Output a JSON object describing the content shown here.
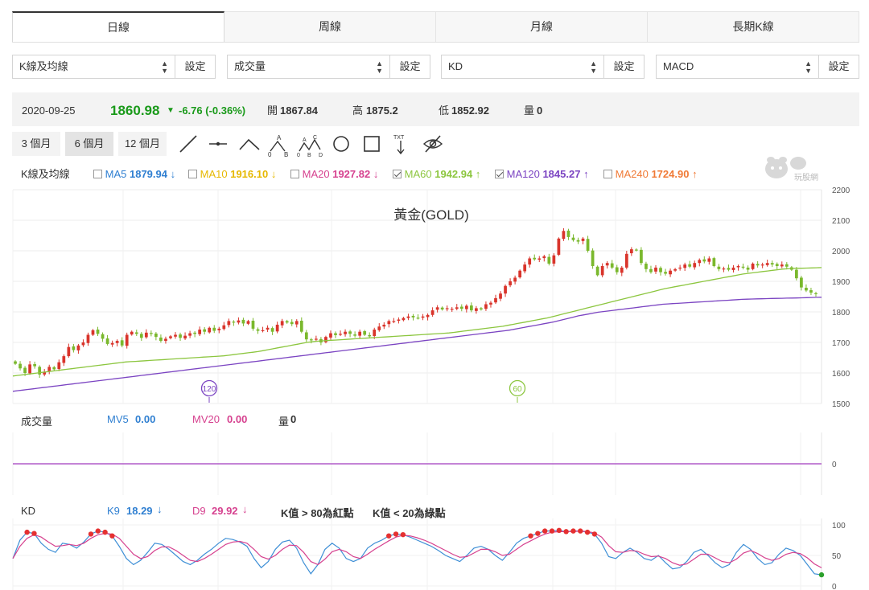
{
  "tabs": [
    "日線",
    "周線",
    "月線",
    "長期K線"
  ],
  "selectors": [
    {
      "value": "K線及均線",
      "button": "設定"
    },
    {
      "value": "成交量",
      "button": "設定"
    },
    {
      "value": "KD",
      "button": "設定"
    },
    {
      "value": "MACD",
      "button": "設定"
    }
  ],
  "quote": {
    "date": "2020-09-25",
    "price": "1860.98",
    "change": "-6.76 (-0.36%)",
    "open_label": "開",
    "open": "1867.84",
    "high_label": "高",
    "high": "1875.2",
    "low_label": "低",
    "low": "1852.92",
    "vol_label": "量",
    "vol": "0"
  },
  "periods": [
    "3 個月",
    "6 個月",
    "12 個月"
  ],
  "active_period": "6 個月",
  "tools": [
    "trend-line-icon",
    "horizontal-line-icon",
    "angle-line-icon",
    "abcd-pattern-icon",
    "abcd-wave-icon",
    "circle-icon",
    "rectangle-icon",
    "text-annotation-icon",
    "hide-eye-icon"
  ],
  "tool_text": {
    "pattern_a": "A",
    "pattern_b": "B",
    "pattern_c": "C",
    "pattern_d": "D",
    "pattern_0": "0",
    "txt": "TXT"
  },
  "logo": {
    "text": "玩股網"
  },
  "ma_legend": {
    "title": "K線及均線",
    "items": [
      {
        "name": "MA5",
        "value": "1879.94",
        "arrow": "↓",
        "color": "#2f7fd1",
        "checked": false
      },
      {
        "name": "MA10",
        "value": "1916.10",
        "arrow": "↓",
        "color": "#e6b800",
        "checked": false
      },
      {
        "name": "MA20",
        "value": "1927.82",
        "arrow": "↓",
        "color": "#d6418f",
        "checked": false
      },
      {
        "name": "MA60",
        "value": "1942.94",
        "arrow": "↑",
        "color": "#8cc63f",
        "checked": true
      },
      {
        "name": "MA120",
        "value": "1845.27",
        "arrow": "↑",
        "color": "#7b44c2",
        "checked": true
      },
      {
        "name": "MA240",
        "value": "1724.90",
        "arrow": "↑",
        "color": "#f07a36",
        "checked": false
      }
    ]
  },
  "volume_legend": {
    "title": "成交量",
    "mv5_label": "MV5",
    "mv5": "0.00",
    "mv20_label": "MV20",
    "mv20": "0.00",
    "vol_label": "量",
    "vol": "0"
  },
  "kd_legend": {
    "title": "KD",
    "k_label": "K9",
    "k": "18.29",
    "k_arrow": "↓",
    "d_label": "D9",
    "d": "29.92",
    "d_arrow": "↓",
    "note_red": "K值 > 80為紅點",
    "note_green": "K值 < 20為綠點"
  },
  "colors": {
    "up": "#d9342b",
    "down": "#7ab82d",
    "ma60": "#8cc63f",
    "ma120": "#7b44c2",
    "k": "#3e8fd6",
    "d": "#d6418f",
    "vol": "#b05bc8"
  },
  "chart_data": [
    {
      "type": "candlestick",
      "title": "黃金(GOLD)",
      "ylim": [
        1500,
        2200
      ],
      "yticks": [
        2200,
        2100,
        2000,
        1900,
        1800,
        1700,
        1600,
        1500
      ],
      "markers": [
        {
          "label": "120"
        },
        {
          "label": "60"
        }
      ],
      "close": [
        1630,
        1615,
        1600,
        1628,
        1622,
        1595,
        1603,
        1620,
        1612,
        1635,
        1655,
        1685,
        1675,
        1690,
        1700,
        1725,
        1740,
        1728,
        1712,
        1695,
        1698,
        1705,
        1690,
        1725,
        1735,
        1728,
        1715,
        1732,
        1728,
        1718,
        1705,
        1712,
        1720,
        1725,
        1715,
        1722,
        1730,
        1728,
        1742,
        1735,
        1748,
        1738,
        1745,
        1756,
        1770,
        1765,
        1772,
        1762,
        1770,
        1745,
        1738,
        1740,
        1748,
        1735,
        1758,
        1770,
        1765,
        1760,
        1770,
        1735,
        1710,
        1708,
        1712,
        1700,
        1718,
        1730,
        1724,
        1728,
        1735,
        1728,
        1722,
        1735,
        1725,
        1720,
        1742,
        1752,
        1758,
        1770,
        1770,
        1775,
        1780,
        1785,
        1782,
        1780,
        1785,
        1790,
        1805,
        1815,
        1808,
        1812,
        1810,
        1815,
        1810,
        1820,
        1805,
        1812,
        1808,
        1825,
        1830,
        1845,
        1860,
        1885,
        1900,
        1912,
        1935,
        1955,
        1975,
        1972,
        1975,
        1982,
        1958,
        1985,
        2040,
        2065,
        2045,
        2035,
        2030,
        2040,
        2000,
        1950,
        1920,
        1950,
        1960,
        1945,
        1930,
        1945,
        1990,
        2005,
        2002,
        1960,
        1940,
        1930,
        1945,
        1930,
        1925,
        1935,
        1940,
        1945,
        1955,
        1948,
        1960,
        1970,
        1965,
        1975,
        1950,
        1940,
        1942,
        1938,
        1945,
        1950,
        1945,
        1938,
        1958,
        1952,
        1955,
        1960,
        1955,
        1950,
        1955,
        1948,
        1938,
        1910,
        1880,
        1870,
        1863,
        1860.98
      ],
      "ma60": [
        1590,
        1592,
        1594,
        1596,
        1598,
        1600,
        1602,
        1604,
        1606,
        1608,
        1610,
        1612,
        1614,
        1616,
        1618,
        1620,
        1622,
        1624,
        1626,
        1628,
        1630,
        1632,
        1634,
        1636,
        1637,
        1638,
        1639,
        1640,
        1641,
        1642,
        1643,
        1644,
        1645,
        1646,
        1647,
        1648,
        1649,
        1650,
        1651,
        1652,
        1653,
        1654,
        1655,
        1656,
        1658,
        1660,
        1662,
        1664,
        1666,
        1668,
        1670,
        1673,
        1676,
        1679,
        1682,
        1685,
        1688,
        1691,
        1694,
        1697,
        1700,
        1702,
        1704,
        1705,
        1706,
        1707,
        1708,
        1709,
        1710,
        1711,
        1712,
        1713,
        1714,
        1715,
        1716,
        1717,
        1718,
        1719,
        1720,
        1721,
        1722,
        1723,
        1724,
        1725,
        1726,
        1727,
        1728,
        1729,
        1730,
        1731,
        1733,
        1735,
        1737,
        1739,
        1741,
        1743,
        1745,
        1747,
        1749,
        1751,
        1753,
        1756,
        1759,
        1762,
        1765,
        1768,
        1771,
        1774,
        1777,
        1780,
        1784,
        1788,
        1792,
        1796,
        1800,
        1804,
        1808,
        1812,
        1816,
        1820,
        1824,
        1828,
        1832,
        1836,
        1840,
        1844,
        1848,
        1852,
        1856,
        1860,
        1864,
        1868,
        1872,
        1876,
        1879,
        1882,
        1885,
        1888,
        1891,
        1894,
        1897,
        1900,
        1903,
        1906,
        1909,
        1912,
        1915,
        1918,
        1921,
        1924,
        1926,
        1928,
        1930,
        1932,
        1934,
        1936,
        1938,
        1940,
        1941,
        1942,
        1942.94,
        1943,
        1943.5,
        1944,
        1944.5,
        1945
      ],
      "ma120": [
        1540,
        1542,
        1544,
        1546,
        1548,
        1550,
        1552,
        1554,
        1556,
        1558,
        1560,
        1562,
        1564,
        1566,
        1568,
        1570,
        1572,
        1574,
        1576,
        1578,
        1580,
        1582,
        1584,
        1586,
        1588,
        1590,
        1592,
        1594,
        1596,
        1598,
        1600,
        1602,
        1604,
        1606,
        1608,
        1610,
        1612,
        1614,
        1616,
        1618,
        1620,
        1622,
        1624,
        1626,
        1628,
        1630,
        1632,
        1634,
        1636,
        1638,
        1640,
        1642,
        1644,
        1646,
        1648,
        1650,
        1652,
        1654,
        1656,
        1658,
        1660,
        1662,
        1664,
        1666,
        1668,
        1670,
        1672,
        1674,
        1676,
        1678,
        1680,
        1682,
        1684,
        1686,
        1688,
        1690,
        1692,
        1694,
        1696,
        1698,
        1700,
        1702,
        1704,
        1706,
        1708,
        1710,
        1712,
        1714,
        1716,
        1718,
        1720,
        1722,
        1724,
        1726,
        1728,
        1730,
        1732,
        1734,
        1736,
        1738,
        1740,
        1743,
        1746,
        1749,
        1752,
        1755,
        1758,
        1761,
        1764,
        1767,
        1771,
        1775,
        1779,
        1783,
        1787,
        1790,
        1793,
        1796,
        1799,
        1801,
        1803,
        1805,
        1807,
        1809,
        1811,
        1813,
        1815,
        1817,
        1819,
        1821,
        1823,
        1825,
        1826,
        1827,
        1828,
        1829,
        1830,
        1831,
        1832,
        1833,
        1834,
        1835,
        1836,
        1837,
        1838,
        1839,
        1840,
        1841,
        1841.5,
        1842,
        1842.5,
        1843,
        1843.5,
        1844,
        1844.3,
        1844.6,
        1845,
        1845.27,
        1845.5,
        1846,
        1846.5,
        1847,
        1847.5,
        1848
      ]
    },
    {
      "type": "line",
      "title": "成交量",
      "ylim": [
        -1,
        1
      ],
      "yticks": [
        0
      ],
      "series": [
        {
          "name": "MV5",
          "values": [
            0
          ]
        }
      ]
    },
    {
      "type": "line",
      "title": "KD",
      "ylim": [
        0,
        100
      ],
      "yticks": [
        100,
        50,
        0
      ],
      "series": [
        {
          "name": "K9",
          "values": [
            45,
            75,
            88,
            86,
            70,
            60,
            55,
            70,
            68,
            62,
            72,
            85,
            90,
            88,
            82,
            65,
            45,
            35,
            42,
            55,
            70,
            68,
            60,
            50,
            40,
            35,
            42,
            52,
            60,
            70,
            78,
            76,
            72,
            65,
            45,
            30,
            40,
            60,
            72,
            75,
            62,
            38,
            20,
            35,
            60,
            70,
            62,
            45,
            40,
            45,
            62,
            70,
            75,
            82,
            85,
            84,
            80,
            75,
            70,
            65,
            58,
            50,
            45,
            40,
            50,
            62,
            65,
            60,
            50,
            42,
            55,
            70,
            78,
            82,
            86,
            90,
            90,
            91,
            89,
            90,
            90,
            88,
            85,
            70,
            48,
            45,
            55,
            62,
            55,
            45,
            42,
            50,
            38,
            28,
            30,
            40,
            55,
            60,
            50,
            38,
            30,
            35,
            55,
            68,
            60,
            45,
            35,
            38,
            52,
            62,
            58,
            50,
            35,
            20,
            18.29
          ]
        },
        {
          "name": "D9",
          "values": [
            45,
            65,
            78,
            84,
            80,
            72,
            65,
            66,
            68,
            66,
            70,
            78,
            84,
            86,
            85,
            78,
            65,
            52,
            45,
            48,
            58,
            64,
            64,
            58,
            50,
            42,
            40,
            45,
            52,
            60,
            68,
            72,
            73,
            70,
            60,
            48,
            44,
            50,
            60,
            67,
            66,
            55,
            40,
            35,
            44,
            56,
            60,
            56,
            48,
            45,
            52,
            60,
            67,
            74,
            80,
            83,
            82,
            79,
            75,
            70,
            64,
            58,
            52,
            47,
            48,
            54,
            60,
            60,
            56,
            50,
            52,
            60,
            68,
            74,
            80,
            85,
            88,
            89,
            89,
            89,
            90,
            89,
            87,
            80,
            66,
            56,
            55,
            58,
            57,
            52,
            48,
            49,
            45,
            38,
            34,
            36,
            44,
            52,
            52,
            46,
            40,
            38,
            44,
            54,
            58,
            53,
            46,
            42,
            45,
            52,
            55,
            53,
            46,
            36,
            29.92
          ]
        }
      ]
    }
  ]
}
